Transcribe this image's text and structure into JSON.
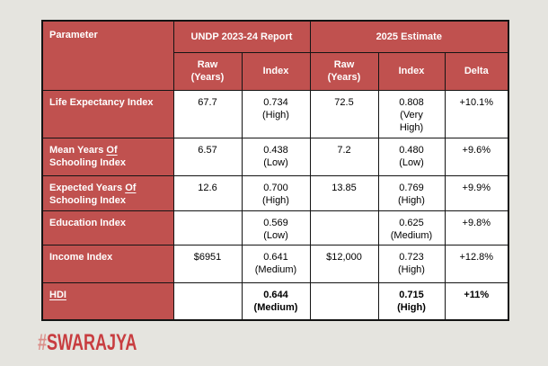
{
  "colors": {
    "page_bg": "#E5E4DF",
    "header_red": "#C0514F",
    "border": "#141414",
    "cell_bg": "#FFFFFF",
    "logo_hash_color": "#DB8E89",
    "logo_text_color": "#C83D40"
  },
  "table": {
    "corner_header": "Parameter",
    "column_groups": [
      {
        "label": "UNDP 2023-24 Report",
        "span": "2"
      },
      {
        "label": "2025 Estimate",
        "span": "3"
      }
    ],
    "sub_headers": [
      "Raw\n(Years)",
      "Index",
      "Raw\n(Years)",
      "Index",
      "Delta"
    ],
    "rows": [
      {
        "param": "Life Expectancy Index",
        "cells": [
          "67.7",
          "0.734\n(High)",
          "72.5",
          "0.808\n(Very\nHigh)",
          "+10.1%"
        ]
      },
      {
        "param": "Mean Years Of\nSchooling Index",
        "underline": "Of",
        "cells": [
          "6.57",
          "0.438\n(Low)",
          "7.2",
          "0.480\n(Low)",
          "+9.6%"
        ]
      },
      {
        "param": "Expected Years Of\nSchooling Index",
        "underline": "Of",
        "cells": [
          "12.6",
          "0.700\n(High)",
          "13.85",
          "0.769\n(High)",
          "+9.9%"
        ]
      },
      {
        "param": "Education Index",
        "cells": [
          "",
          "0.569\n(Low)",
          "",
          "0.625\n(Medium)",
          "+9.8%"
        ]
      },
      {
        "param": "Income Index",
        "cells": [
          "$6951",
          "0.641\n(Medium)",
          "$12,000",
          "0.723\n(High)",
          "+12.8%"
        ]
      },
      {
        "param": "HDI",
        "underline": "HDI",
        "bold": true,
        "cells": [
          "",
          "0.644\n(Medium)",
          "",
          "0.715\n(High)",
          "+11%"
        ]
      }
    ]
  },
  "footer": {
    "logo_hash": "#",
    "logo_text": "SWARAJYA"
  }
}
